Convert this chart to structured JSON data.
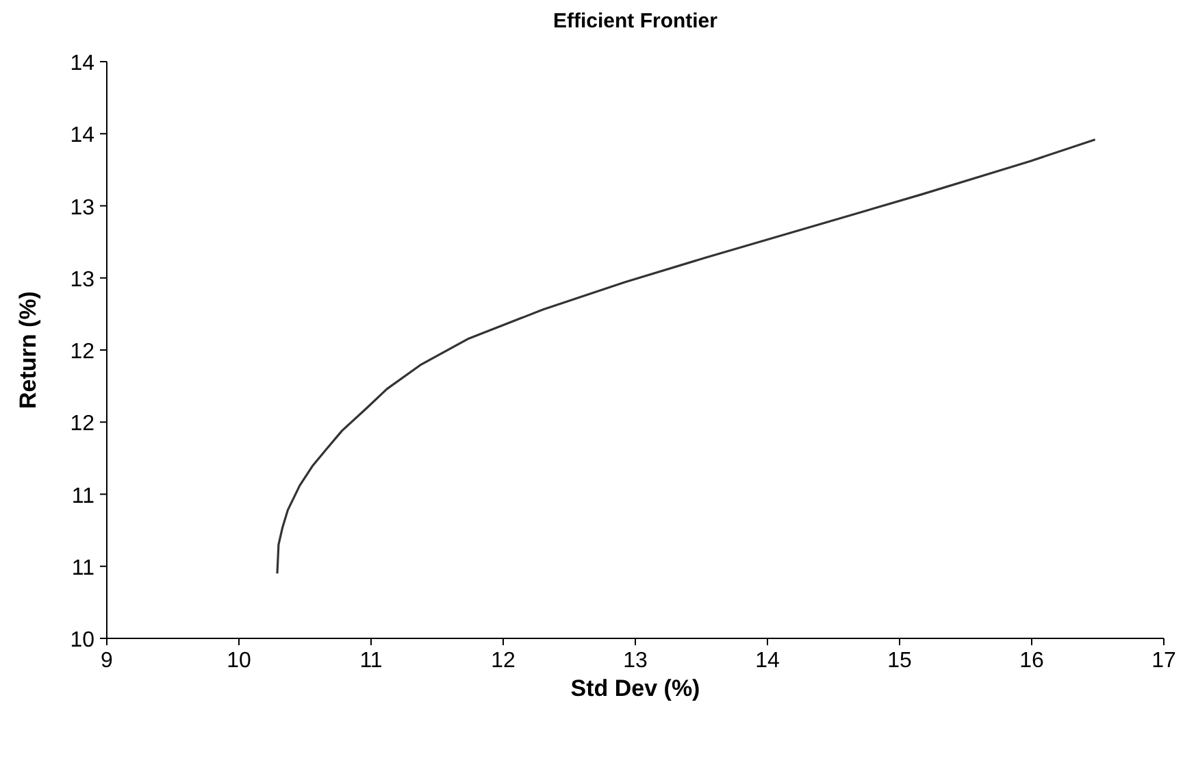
{
  "chart_data": {
    "type": "line",
    "title": "Efficient Frontier",
    "xlabel": "Std Dev (%)",
    "ylabel": "Return (%)",
    "x": [
      10.29,
      10.3,
      10.33,
      10.37,
      10.46,
      10.56,
      10.66,
      10.78,
      10.97,
      11.12,
      11.38,
      11.74,
      12.3,
      12.92,
      13.53,
      14.35,
      15.17,
      15.99,
      16.48
    ],
    "series": [
      {
        "color": "#333333",
        "values": [
          10.45,
          10.65,
          10.77,
          10.89,
          11.06,
          11.2,
          11.31,
          11.44,
          11.6,
          11.73,
          11.9,
          12.08,
          12.28,
          12.47,
          12.64,
          12.86,
          13.08,
          13.31,
          13.46
        ]
      }
    ],
    "xlim": [
      9,
      17
    ],
    "xticks": [
      9,
      10,
      11,
      12,
      13,
      14,
      15,
      16,
      17
    ],
    "ylim": [
      10,
      14
    ],
    "yticks": [
      10,
      {
        "value": 10.5,
        "label": "11"
      },
      11,
      {
        "value": 11.5,
        "label": "12"
      },
      12,
      {
        "value": 12.5,
        "label": "13"
      },
      13,
      {
        "value": 13.5,
        "label": "14"
      },
      14
    ],
    "grid": false,
    "marker": "none",
    "line_style": "solid"
  }
}
